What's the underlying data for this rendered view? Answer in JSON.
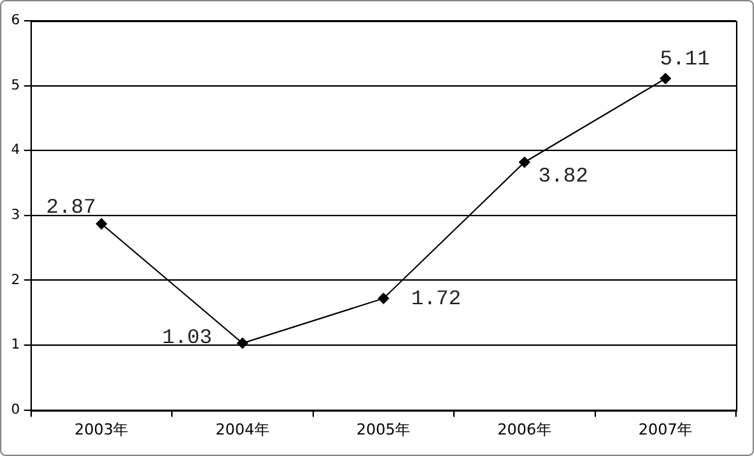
{
  "chart_data": {
    "type": "line",
    "categories": [
      "2003年",
      "2004年",
      "2005年",
      "2006年",
      "2007年"
    ],
    "series": [
      {
        "color": "#000000",
        "values": [
          2.87,
          1.03,
          1.72,
          3.82,
          5.11
        ]
      }
    ],
    "ylim": [
      0,
      6
    ],
    "yticks": [
      0,
      1,
      2,
      3,
      4,
      5,
      6
    ],
    "grid": "y",
    "legend": false,
    "marker": "diamond",
    "line_style": "solid",
    "data_labels": true
  }
}
